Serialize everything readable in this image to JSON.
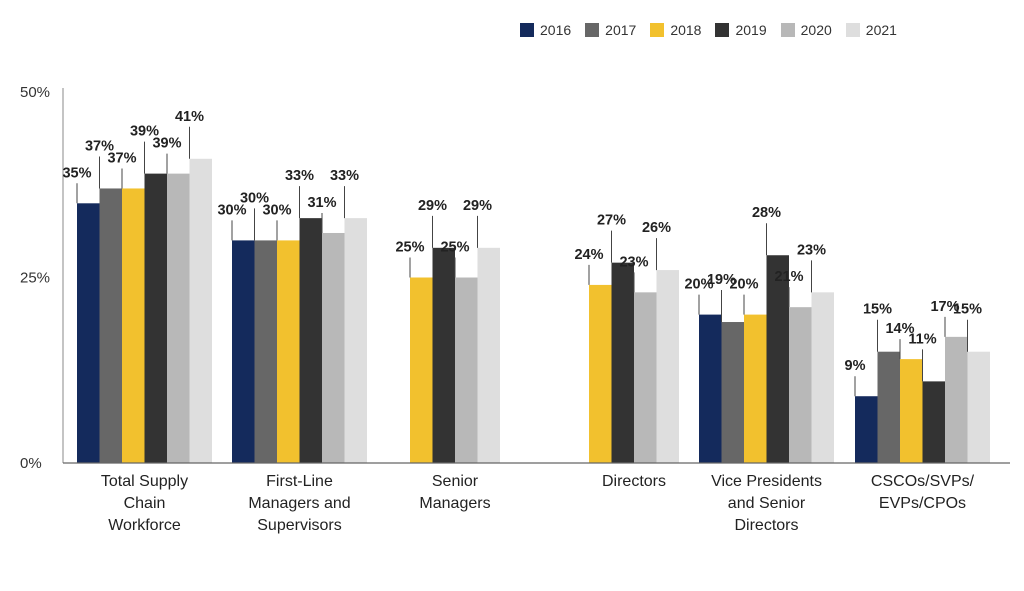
{
  "chart_data": {
    "type": "bar",
    "title": "",
    "xlabel": "",
    "ylabel": "",
    "ylim": [
      0,
      50
    ],
    "yticks": [
      {
        "value": 0,
        "label": "0%"
      },
      {
        "value": 25,
        "label": "25%"
      },
      {
        "value": 50,
        "label": "50%"
      }
    ],
    "grid": false,
    "legend_position": "top-right",
    "categories": [
      "Total Supply Chain Workforce",
      "First-Line Managers and Supervisors",
      "Senior Managers",
      "Directors",
      "Vice Presidents and Senior Directors",
      "CSCOs/SVPs/EVPs/CPOs"
    ],
    "category_lines": [
      [
        "Total Supply",
        "Chain",
        "Workforce"
      ],
      [
        "First-Line",
        "Managers and",
        "Supervisors"
      ],
      [
        "Senior",
        "Managers"
      ],
      [
        "Directors"
      ],
      [
        "Vice Presidents",
        "and Senior",
        "Directors"
      ],
      [
        "CSCOs/SVPs/",
        "EVPs/CPOs"
      ]
    ],
    "series": [
      {
        "name": "2016",
        "color": "#142a5c",
        "values": [
          35,
          30,
          null,
          null,
          20,
          9
        ]
      },
      {
        "name": "2017",
        "color": "#676767",
        "values": [
          37,
          30,
          null,
          null,
          19,
          15
        ]
      },
      {
        "name": "2018",
        "color": "#f2c12e",
        "values": [
          37,
          30,
          25,
          24,
          20,
          14
        ]
      },
      {
        "name": "2019",
        "color": "#333333",
        "values": [
          39,
          33,
          29,
          27,
          28,
          11
        ]
      },
      {
        "name": "2020",
        "color": "#b8b8b8",
        "values": [
          39,
          31,
          25,
          23,
          21,
          17
        ]
      },
      {
        "name": "2021",
        "color": "#dedede",
        "values": [
          41,
          33,
          29,
          26,
          23,
          15
        ]
      }
    ],
    "value_labels": [
      [
        "35%",
        "30%",
        null,
        null,
        "20%",
        "9%"
      ],
      [
        "37%",
        "30%",
        null,
        null,
        "19%",
        "15%"
      ],
      [
        "37%",
        "30%",
        "25%",
        "24%",
        "20%",
        "14%"
      ],
      [
        "39%",
        "33%",
        "29%",
        "27%",
        "28%",
        "11%"
      ],
      [
        "39%",
        "31%",
        "25%",
        "23%",
        "21%",
        "17%"
      ],
      [
        "41%",
        "33%",
        "29%",
        "26%",
        "23%",
        "15%"
      ]
    ]
  }
}
